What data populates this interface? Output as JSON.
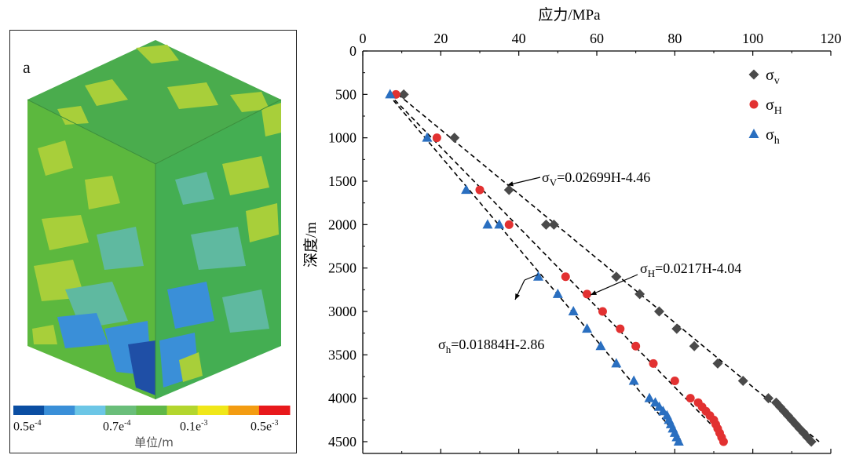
{
  "panel_a": {
    "label": "a",
    "colorbar": {
      "colors": [
        "#0b4ea2",
        "#3a8fd8",
        "#6cc6e6",
        "#6abe7a",
        "#5fb848",
        "#b3d62e",
        "#f0e719",
        "#f39c12",
        "#e8191c"
      ],
      "tick_labels": [
        {
          "base": "0.5e",
          "exp": "-4"
        },
        {
          "base": "0.7e",
          "exp": "-4"
        },
        {
          "base": "0.1e",
          "exp": "-3"
        },
        {
          "base": "0.5e",
          "exp": "-3"
        }
      ],
      "unit_label": "单位/m"
    },
    "colors": {
      "top_face": "#4aac4d",
      "left_face": "#5cb83e",
      "right_face": "#44ae52",
      "yellow_patch": "#a8cf3a",
      "teal_patch": "#5fb9a0",
      "blue_patch": "#3a8fd8",
      "deep_blue": "#1f4fa6"
    }
  },
  "chart_data": {
    "type": "scatter",
    "xlabel": "应力/MPa",
    "ylabel": "深度/m",
    "xlim": [
      0,
      120
    ],
    "ylim": [
      4500,
      0
    ],
    "x_ticks": [
      "0",
      "20",
      "40",
      "60",
      "80",
      "100",
      "120"
    ],
    "y_ticks": [
      "0",
      "500",
      "1000",
      "1500",
      "2000",
      "2500",
      "3000",
      "3500",
      "4000",
      "4500"
    ],
    "legend_position": "top-right",
    "series": [
      {
        "name": "σv",
        "name_base": "σ",
        "name_sub": "v",
        "marker": "diamond",
        "color": "#4a4a4a",
        "points": [
          [
            10.5,
            500
          ],
          [
            23.5,
            1000
          ],
          [
            37.5,
            1600
          ],
          [
            47,
            2000
          ],
          [
            49,
            2000
          ],
          [
            65,
            2600
          ],
          [
            71,
            2800
          ],
          [
            76,
            3000
          ],
          [
            80.5,
            3200
          ],
          [
            85,
            3400
          ],
          [
            91,
            3600
          ],
          [
            97.5,
            3800
          ],
          [
            104,
            4000
          ],
          [
            106,
            4050
          ],
          [
            107,
            4100
          ],
          [
            108,
            4150
          ],
          [
            109,
            4200
          ],
          [
            110,
            4250
          ],
          [
            111,
            4300
          ],
          [
            112,
            4350
          ],
          [
            113,
            4400
          ],
          [
            114,
            4450
          ],
          [
            115,
            4500
          ]
        ],
        "fit": {
          "slope": 0.02699,
          "intercept": -4.46,
          "label_base": "σ",
          "label_sub": "V",
          "label_text": "=0.02699H-4.46"
        }
      },
      {
        "name": "σH",
        "name_base": "σ",
        "name_sub": "H",
        "marker": "circle",
        "color": "#e23131",
        "points": [
          [
            8.5,
            500
          ],
          [
            19,
            1000
          ],
          [
            30,
            1600
          ],
          [
            37.5,
            2000
          ],
          [
            52,
            2600
          ],
          [
            57.5,
            2800
          ],
          [
            61.5,
            3000
          ],
          [
            66,
            3200
          ],
          [
            70,
            3400
          ],
          [
            74.5,
            3600
          ],
          [
            80,
            3800
          ],
          [
            84,
            4000
          ],
          [
            86,
            4050
          ],
          [
            87,
            4100
          ],
          [
            88,
            4150
          ],
          [
            89,
            4200
          ],
          [
            90,
            4250
          ],
          [
            90.5,
            4300
          ],
          [
            91,
            4350
          ],
          [
            91.5,
            4400
          ],
          [
            92,
            4450
          ],
          [
            92.5,
            4500
          ]
        ],
        "fit": {
          "slope": 0.0217,
          "intercept": -4.04,
          "label_base": "σ",
          "label_sub": "H",
          "label_text": "=0.0217H-4.04"
        }
      },
      {
        "name": "σh",
        "name_base": "σ",
        "name_sub": "h",
        "marker": "triangle",
        "color": "#2a6fc0",
        "points": [
          [
            7,
            500
          ],
          [
            16.5,
            1000
          ],
          [
            26.5,
            1600
          ],
          [
            32,
            2000
          ],
          [
            35,
            2000
          ],
          [
            45,
            2600
          ],
          [
            50,
            2800
          ],
          [
            54,
            3000
          ],
          [
            57.5,
            3200
          ],
          [
            61,
            3400
          ],
          [
            65,
            3600
          ],
          [
            69.5,
            3800
          ],
          [
            73.5,
            4000
          ],
          [
            75,
            4050
          ],
          [
            76,
            4100
          ],
          [
            77,
            4150
          ],
          [
            78,
            4200
          ],
          [
            78.5,
            4250
          ],
          [
            79,
            4300
          ],
          [
            79.5,
            4350
          ],
          [
            80,
            4400
          ],
          [
            80.5,
            4450
          ],
          [
            81,
            4500
          ]
        ],
        "fit": {
          "slope": 0.01884,
          "intercept": -2.86,
          "label_base": "σ",
          "label_sub": "h",
          "label_text": "=0.01884H-2.86"
        }
      }
    ]
  }
}
